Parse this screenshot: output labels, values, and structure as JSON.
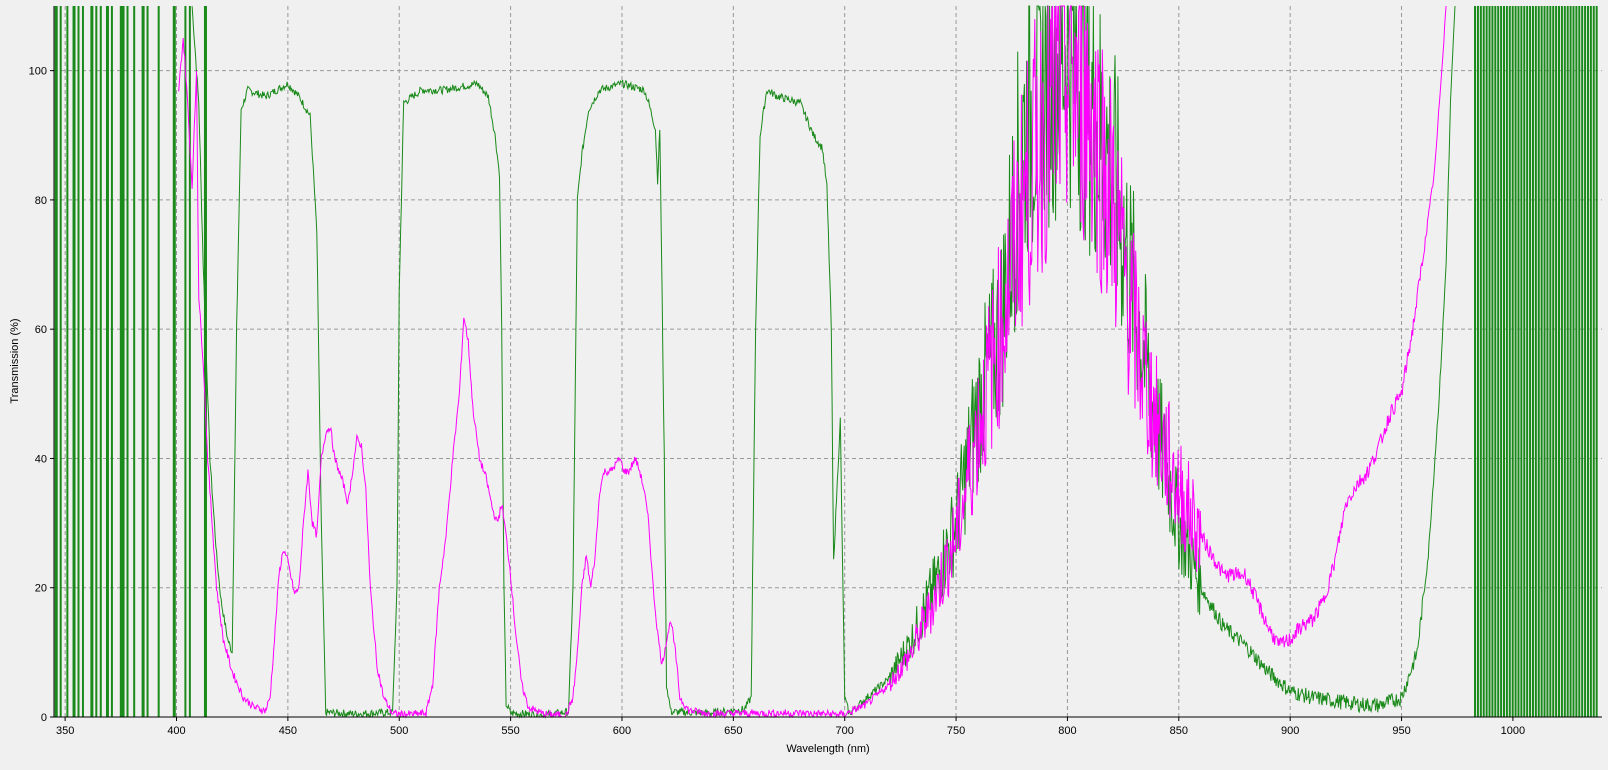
{
  "chart_data": {
    "type": "line",
    "title": "",
    "xlabel": "Wavelength (nm)",
    "ylabel": "Transmission (%)",
    "xlim": [
      345,
      1040
    ],
    "ylim": [
      0,
      110
    ],
    "x_ticks": [
      350,
      400,
      450,
      500,
      550,
      600,
      650,
      700,
      750,
      800,
      850,
      900,
      950,
      1000
    ],
    "y_ticks": [
      0,
      20,
      40,
      60,
      80,
      100
    ],
    "grid": true,
    "grid_style": "dashed",
    "legend": "none",
    "series": [
      {
        "color": "#1a8a1a",
        "points": [
          [
            407,
            110
          ],
          [
            410,
            95
          ],
          [
            412,
            70
          ],
          [
            415,
            40
          ],
          [
            418,
            25
          ],
          [
            420,
            18
          ],
          [
            423,
            12
          ],
          [
            425,
            10
          ],
          [
            427,
            60
          ],
          [
            429,
            94
          ],
          [
            432,
            97
          ],
          [
            440,
            96
          ],
          [
            450,
            98
          ],
          [
            455,
            96
          ],
          [
            460,
            93
          ],
          [
            463,
            75
          ],
          [
            465,
            30
          ],
          [
            467,
            0.7
          ],
          [
            480,
            0.5
          ],
          [
            497,
            0.7
          ],
          [
            499,
            20
          ],
          [
            500,
            66
          ],
          [
            502,
            95
          ],
          [
            510,
            97
          ],
          [
            520,
            97
          ],
          [
            535,
            98
          ],
          [
            540,
            96
          ],
          [
            543,
            90
          ],
          [
            545,
            84
          ],
          [
            546,
            60
          ],
          [
            547,
            20
          ],
          [
            548,
            2
          ],
          [
            550,
            0.6
          ],
          [
            565,
            0.3
          ],
          [
            576,
            0.8
          ],
          [
            578,
            20
          ],
          [
            580,
            80
          ],
          [
            582,
            87
          ],
          [
            585,
            94
          ],
          [
            590,
            97
          ],
          [
            600,
            98
          ],
          [
            610,
            97
          ],
          [
            612,
            95
          ],
          [
            615,
            91
          ],
          [
            616,
            83
          ],
          [
            617,
            91
          ],
          [
            619,
            40
          ],
          [
            620,
            5
          ],
          [
            622,
            0.8
          ],
          [
            640,
            0.6
          ],
          [
            655,
            1.2
          ],
          [
            658,
            3
          ],
          [
            660,
            60
          ],
          [
            662,
            90
          ],
          [
            665,
            97
          ],
          [
            670,
            96
          ],
          [
            680,
            95
          ],
          [
            686,
            90
          ],
          [
            690,
            88
          ],
          [
            692,
            82
          ],
          [
            694,
            60
          ],
          [
            695,
            24
          ],
          [
            698,
            46
          ],
          [
            700,
            3
          ],
          [
            702,
            0.5
          ],
          [
            710,
            3
          ],
          [
            720,
            6
          ],
          [
            730,
            12
          ],
          [
            740,
            20
          ],
          [
            750,
            30
          ],
          [
            760,
            48
          ],
          [
            770,
            60
          ],
          [
            775,
            75
          ],
          [
            780,
            90
          ],
          [
            790,
            100
          ],
          [
            800,
            105
          ],
          [
            810,
            95
          ],
          [
            820,
            85
          ],
          [
            830,
            65
          ],
          [
            840,
            45
          ],
          [
            850,
            30
          ],
          [
            860,
            20
          ],
          [
            870,
            14
          ],
          [
            880,
            11
          ],
          [
            890,
            7
          ],
          [
            900,
            4
          ],
          [
            910,
            3
          ],
          [
            920,
            2.5
          ],
          [
            930,
            2
          ],
          [
            940,
            1.8
          ],
          [
            950,
            3
          ],
          [
            957,
            10
          ],
          [
            962,
            25
          ],
          [
            967,
            50
          ],
          [
            970,
            70
          ],
          [
            972,
            95
          ],
          [
            974,
            110
          ]
        ]
      },
      {
        "color": "#ff00ff",
        "points": [
          [
            401,
            97
          ],
          [
            403,
            105
          ],
          [
            405,
            95
          ],
          [
            407,
            82
          ],
          [
            409,
            100
          ],
          [
            410,
            65
          ],
          [
            412,
            55
          ],
          [
            414,
            40
          ],
          [
            416,
            30
          ],
          [
            418,
            20
          ],
          [
            421,
            12
          ],
          [
            425,
            7
          ],
          [
            430,
            3
          ],
          [
            435,
            1.5
          ],
          [
            440,
            1
          ],
          [
            442,
            3
          ],
          [
            444,
            12
          ],
          [
            446,
            22
          ],
          [
            448,
            26
          ],
          [
            450,
            24
          ],
          [
            453,
            19
          ],
          [
            455,
            20
          ],
          [
            457,
            30
          ],
          [
            459,
            38
          ],
          [
            461,
            30
          ],
          [
            463,
            28
          ],
          [
            465,
            40
          ],
          [
            467,
            44
          ],
          [
            469,
            45
          ],
          [
            471,
            40
          ],
          [
            473,
            38
          ],
          [
            475,
            36
          ],
          [
            477,
            33
          ],
          [
            479,
            38
          ],
          [
            481,
            43
          ],
          [
            483,
            42
          ],
          [
            485,
            35
          ],
          [
            487,
            20
          ],
          [
            490,
            8
          ],
          [
            493,
            3
          ],
          [
            497,
            0.5
          ],
          [
            505,
            0.4
          ],
          [
            512,
            0.6
          ],
          [
            515,
            5
          ],
          [
            518,
            20
          ],
          [
            521,
            28
          ],
          [
            524,
            40
          ],
          [
            527,
            50
          ],
          [
            529,
            62
          ],
          [
            531,
            58
          ],
          [
            533,
            48
          ],
          [
            536,
            40
          ],
          [
            539,
            37
          ],
          [
            542,
            32
          ],
          [
            544,
            30
          ],
          [
            546,
            33
          ],
          [
            548,
            28
          ],
          [
            550,
            22
          ],
          [
            552,
            14
          ],
          [
            555,
            5
          ],
          [
            558,
            1.5
          ],
          [
            565,
            0.4
          ],
          [
            575,
            0.3
          ],
          [
            578,
            3
          ],
          [
            580,
            10
          ],
          [
            582,
            20
          ],
          [
            584,
            25
          ],
          [
            586,
            20
          ],
          [
            588,
            25
          ],
          [
            590,
            35
          ],
          [
            592,
            38
          ],
          [
            595,
            38
          ],
          [
            599,
            40
          ],
          [
            601,
            38
          ],
          [
            603,
            38
          ],
          [
            606,
            40
          ],
          [
            608,
            38
          ],
          [
            610,
            35
          ],
          [
            612,
            30
          ],
          [
            614,
            20
          ],
          [
            616,
            13
          ],
          [
            618,
            8
          ],
          [
            620,
            12
          ],
          [
            622,
            15
          ],
          [
            624,
            10
          ],
          [
            626,
            3
          ],
          [
            630,
            1
          ],
          [
            640,
            0.5
          ],
          [
            660,
            0.6
          ],
          [
            680,
            0.6
          ],
          [
            700,
            0.4
          ],
          [
            710,
            2
          ],
          [
            720,
            5
          ],
          [
            730,
            10
          ],
          [
            740,
            18
          ],
          [
            750,
            28
          ],
          [
            760,
            45
          ],
          [
            770,
            60
          ],
          [
            780,
            80
          ],
          [
            790,
            92
          ],
          [
            800,
            100
          ],
          [
            810,
            95
          ],
          [
            820,
            80
          ],
          [
            830,
            60
          ],
          [
            840,
            45
          ],
          [
            850,
            35
          ],
          [
            860,
            28
          ],
          [
            870,
            22
          ],
          [
            880,
            22
          ],
          [
            885,
            18
          ],
          [
            890,
            14
          ],
          [
            895,
            11
          ],
          [
            900,
            12
          ],
          [
            905,
            14
          ],
          [
            910,
            15
          ],
          [
            915,
            18
          ],
          [
            920,
            24
          ],
          [
            925,
            33
          ],
          [
            930,
            36
          ],
          [
            935,
            38
          ],
          [
            940,
            42
          ],
          [
            945,
            47
          ],
          [
            950,
            50
          ],
          [
            955,
            60
          ],
          [
            960,
            72
          ],
          [
            965,
            85
          ],
          [
            968,
            100
          ],
          [
            970,
            110
          ]
        ]
      }
    ]
  }
}
